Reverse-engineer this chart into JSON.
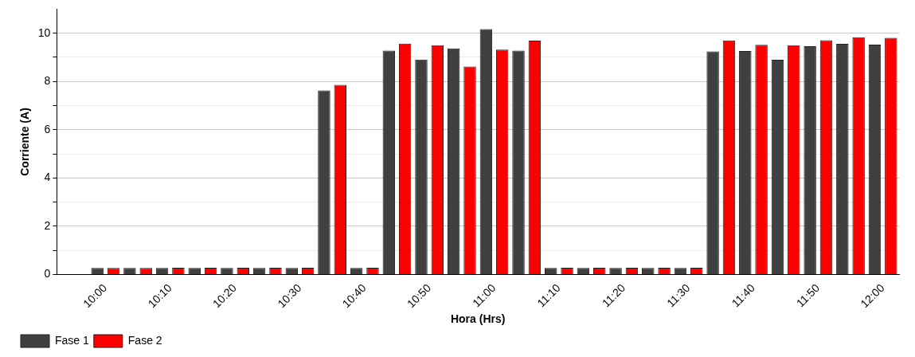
{
  "chart_data": {
    "type": "bar",
    "xlabel": "Hora (Hrs)",
    "ylabel": "Corriente (A)",
    "categories": [
      null,
      "10:00",
      null,
      "10:10",
      null,
      "10:20",
      null,
      "10:30",
      null,
      "10:40",
      null,
      "10:50",
      null,
      "11:00",
      null,
      "11:10",
      null,
      "11:20",
      null,
      "11:30",
      null,
      "11:40",
      null,
      "11:50",
      null,
      "12:00"
    ],
    "series": [
      {
        "name": "Fase 1",
        "color": "#404040",
        "values": [
          null,
          0.27,
          0.27,
          0.27,
          0.27,
          0.27,
          0.27,
          0.27,
          7.63,
          0.27,
          9.28,
          8.91,
          9.37,
          10.17,
          9.28,
          0.27,
          0.27,
          0.27,
          0.27,
          0.27,
          9.25,
          9.26,
          8.9,
          9.46,
          9.56,
          9.53
        ]
      },
      {
        "name": "Fase 2",
        "color": "#ff0000",
        "values": [
          null,
          0.27,
          0.27,
          0.28,
          0.28,
          0.28,
          0.28,
          0.28,
          7.86,
          0.28,
          9.57,
          9.5,
          8.62,
          9.32,
          9.69,
          0.28,
          0.28,
          0.28,
          0.28,
          0.28,
          9.7,
          9.52,
          9.5,
          9.71,
          9.83,
          9.81
        ]
      }
    ],
    "ylim": [
      0,
      11
    ],
    "yticks": [
      0,
      {
        "value": 1,
        "label": null
      },
      2,
      {
        "value": 3,
        "label": null
      },
      4,
      {
        "value": 5,
        "label": null
      },
      6,
      {
        "value": 7,
        "label": null
      },
      8,
      {
        "value": 9,
        "label": null
      },
      10
    ],
    "grid": "y",
    "legend": "bottom left"
  }
}
